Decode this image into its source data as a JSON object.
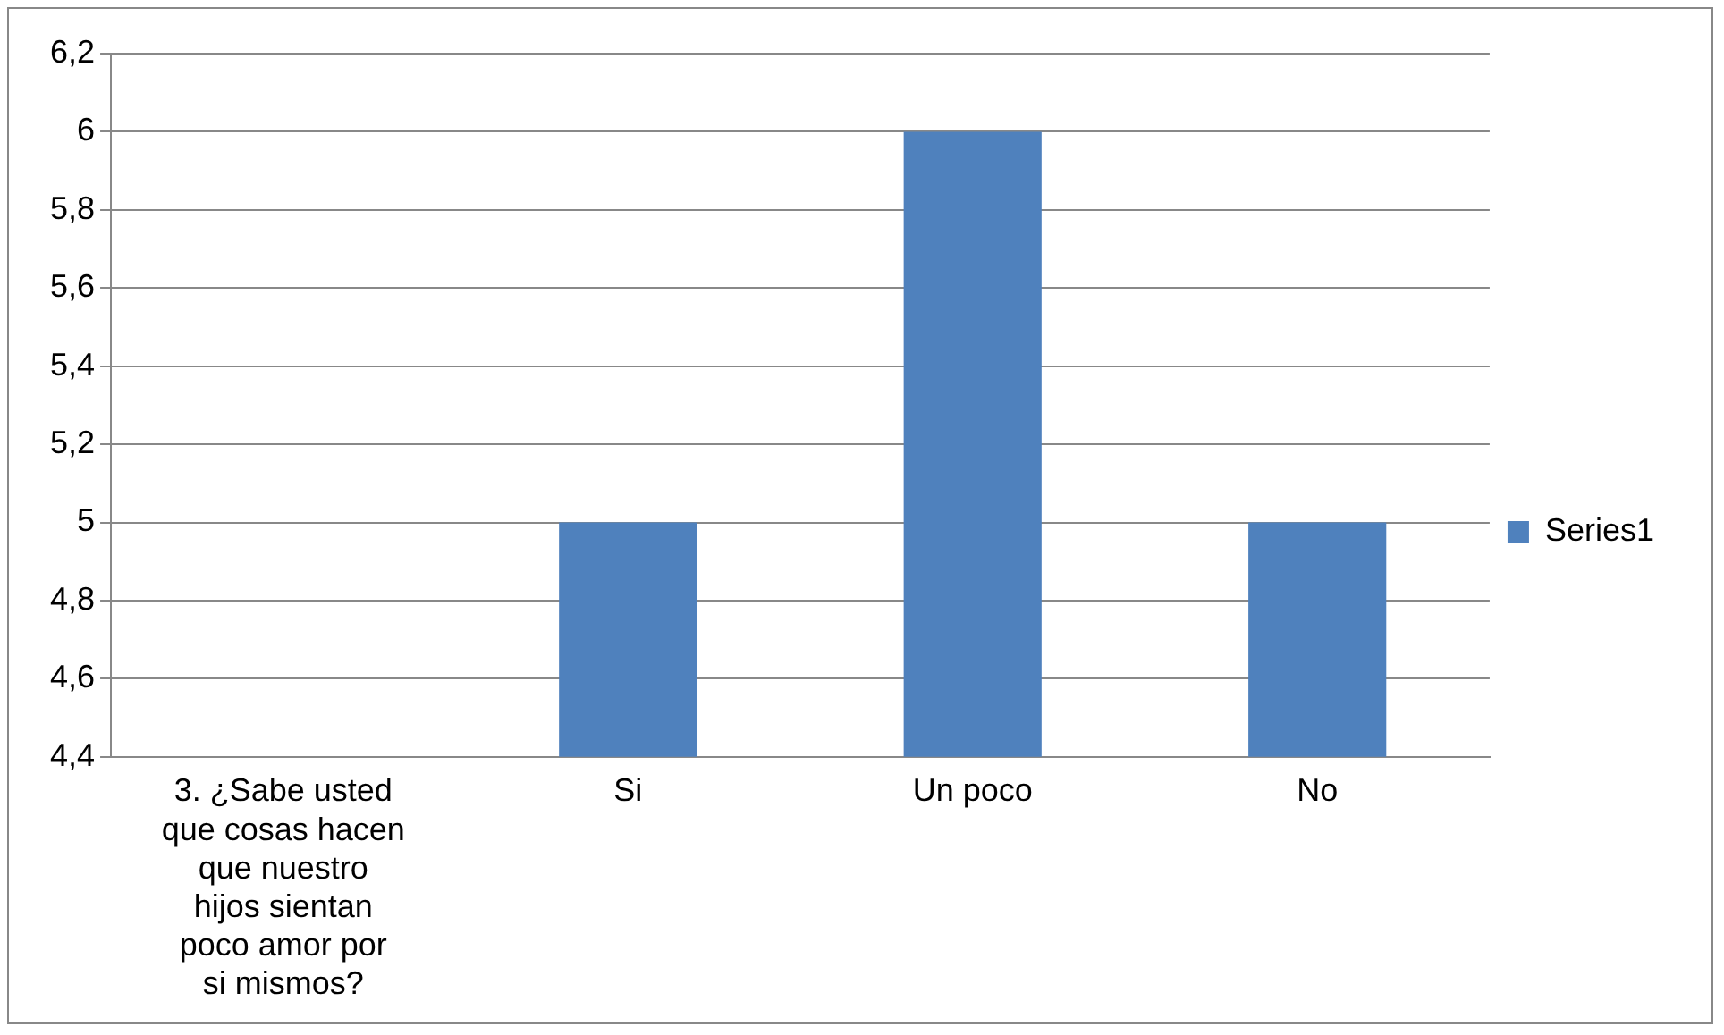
{
  "chart_data": {
    "type": "bar",
    "categories": [
      "3. ¿Sabe usted que cosas hacen que nuestro hijos sientan poco amor por si mismos?",
      "Si",
      "Un poco",
      "No"
    ],
    "series": [
      {
        "name": "Series1",
        "color": "#4f81bd",
        "values": [
          null,
          5,
          6,
          5
        ]
      }
    ],
    "ylim": [
      4.4,
      6.2
    ],
    "yticks": [
      {
        "value": 4.4,
        "label": "4,4"
      },
      {
        "value": 4.6,
        "label": "4,6"
      },
      {
        "value": 4.8,
        "label": "4,8"
      },
      {
        "value": 5,
        "label": "5"
      },
      {
        "value": 5.2,
        "label": "5,2"
      },
      {
        "value": 5.4,
        "label": "5,4"
      },
      {
        "value": 5.6,
        "label": "5,6"
      },
      {
        "value": 5.8,
        "label": "5,8"
      },
      {
        "value": 6,
        "label": "6"
      },
      {
        "value": 6.2,
        "label": "6,2"
      }
    ],
    "grid": "y",
    "legend": "right"
  }
}
